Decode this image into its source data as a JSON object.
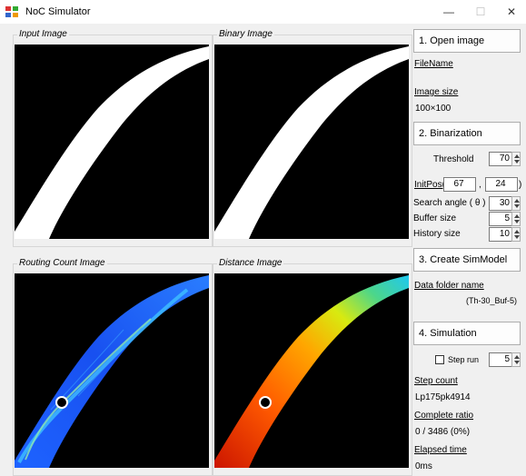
{
  "window": {
    "title": "NoC Simulator",
    "minimize": "—",
    "maximize": "☐",
    "close": "✕"
  },
  "panels": {
    "input": "Input Image",
    "binary": "Binary Image",
    "routing": "Routing Count Image",
    "distance": "Distance Image"
  },
  "controls": {
    "open_image": "1. Open image",
    "filename_label": "FileName",
    "image_size_label": "Image size",
    "image_size_value": "100×100",
    "binarization": "2. Binarization",
    "threshold_label": "Threshold",
    "threshold_value": "70",
    "initpos_label": "InitPos(",
    "initpos_x": "67",
    "initpos_comma": ",",
    "initpos_y": "24",
    "initpos_close": ")",
    "search_angle_label": "Search angle ( θ )",
    "search_angle_value": "30",
    "buffer_size_label": "Buffer size",
    "buffer_size_value": "5",
    "history_size_label": "History size",
    "history_size_value": "10",
    "create_simmodel": "3. Create SimModel",
    "data_folder_label": "Data folder name",
    "data_folder_value": "(Th-30_Buf-5)",
    "simulation": "4. Simulation",
    "step_run_label": "Step run",
    "step_run_value": "5",
    "step_count_label": "Step count",
    "step_count_value": "Lp175pk4914",
    "complete_ratio_label": "Complete ratio",
    "complete_ratio_value": "0 / 3486 (0%)",
    "elapsed_time_label": "Elapsed time",
    "elapsed_time_value": "0ms"
  }
}
